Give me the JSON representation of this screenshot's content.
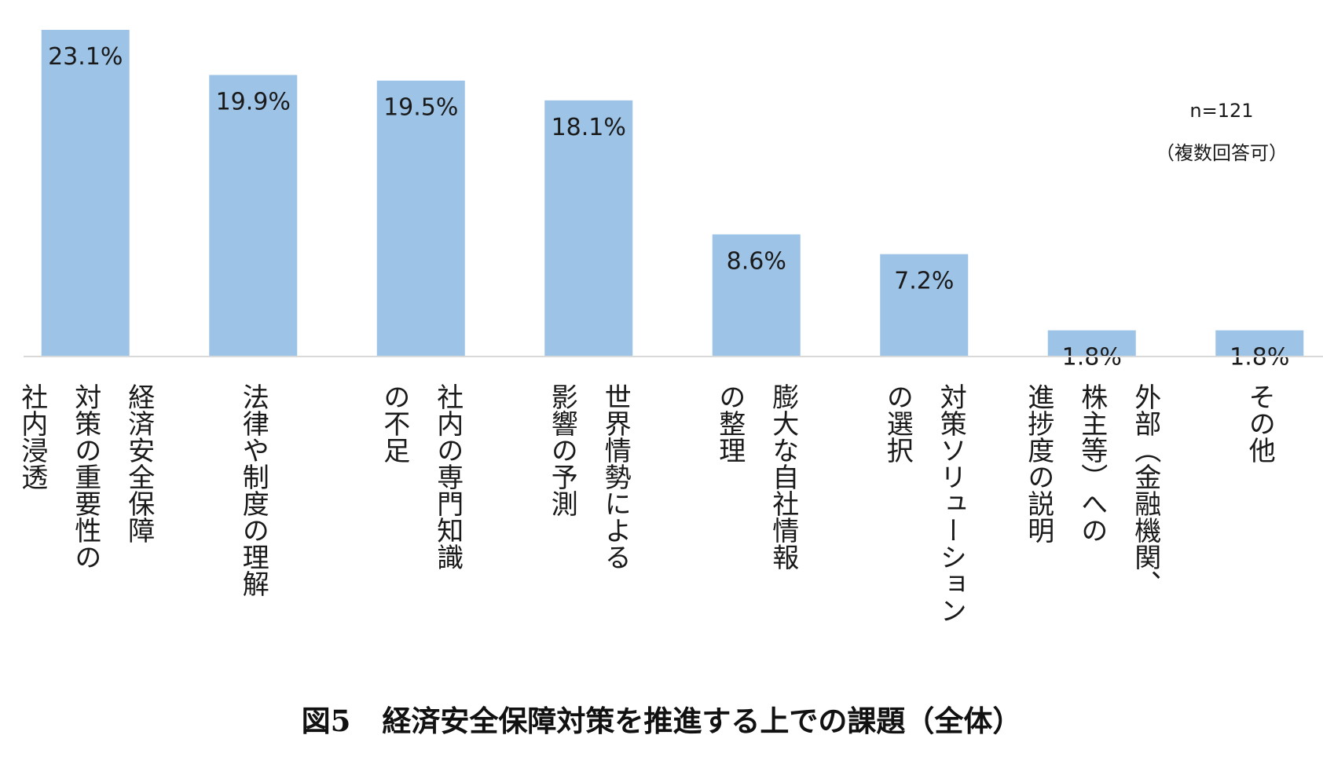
{
  "chart_data": {
    "type": "bar",
    "categories": [
      "経済安全保障対策の重要性の社内浸透",
      "法律や制度の理解",
      "社内の専門知識の不足",
      "世界情勢による影響の予測",
      "膨大な自社情報の整理",
      "対策ソリューションの選択",
      "外部（金融機関、株主等）への進捗度の説明",
      "その他"
    ],
    "category_lines": [
      [
        "経済安全保障",
        "対策の重要性の",
        "社内浸透"
      ],
      [
        "法律や制度の理解"
      ],
      [
        "社内の専門知識",
        "の不足"
      ],
      [
        "世界情勢による",
        "影響の予測"
      ],
      [
        "膨大な自社情報",
        "の整理"
      ],
      [
        "対策ソリューション",
        "の選択"
      ],
      [
        "外部（金融機関、",
        "株主等）への",
        "進捗度の説明"
      ],
      [
        "その他"
      ]
    ],
    "values": [
      23.1,
      19.9,
      19.5,
      18.1,
      8.6,
      7.2,
      1.8,
      1.8
    ],
    "value_labels": [
      "23.1%",
      "19.9%",
      "19.5%",
      "18.1%",
      "8.6%",
      "7.2%",
      "1.8%",
      "1.8%"
    ],
    "unit": "%",
    "ylim": [
      0,
      25
    ],
    "grid": false,
    "bar_color": "#9dc3e6",
    "note_lines": [
      "n=121",
      "（複数回答可）"
    ],
    "caption": {
      "figure_no": "図5",
      "title": "経済安全保障対策を推進する上での課題（全体）"
    }
  }
}
